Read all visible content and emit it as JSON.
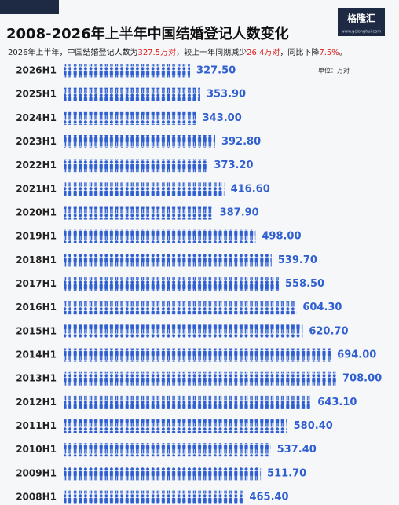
{
  "chart_data": {
    "type": "pictogram-bar",
    "title": "2008-2026年上半年中国结婚登记人数变化",
    "subtitle": [
      "2026年上半年，中国结婚登记人数为",
      "327.5万对",
      "，较上一年同期减少",
      "26.4万对",
      "，同比下降",
      "7.5%",
      "。"
    ],
    "unit": "单位：万对",
    "logo": {
      "name": "格隆汇",
      "url": "www.gelonghui.com"
    },
    "color": "#2f5fd0",
    "categories": [
      "2026H1",
      "2025H1",
      "2024H1",
      "2023H1",
      "2022H1",
      "2021H1",
      "2020H1",
      "2019H1",
      "2018H1",
      "2017H1",
      "2016H1",
      "2015H1",
      "2014H1",
      "2013H1",
      "2012H1",
      "2011H1",
      "2010H1",
      "2009H1",
      "2008H1"
    ],
    "values": [
      327.5,
      353.9,
      343,
      392.8,
      373.2,
      416.6,
      387.9,
      498,
      539.7,
      558.5,
      604.3,
      620.7,
      694,
      708,
      643.1,
      580.4,
      537.4,
      511.7,
      465.4
    ],
    "value_labels": [
      "327.50",
      "353.90",
      "343.00",
      "392.80",
      "373.20",
      "416.60",
      "387.90",
      "498.00",
      "539.70",
      "558.50",
      "604.30",
      "620.70",
      "694.00",
      "708.00",
      "643.10",
      "580.40",
      "537.40",
      "511.70",
      "465.40"
    ]
  }
}
